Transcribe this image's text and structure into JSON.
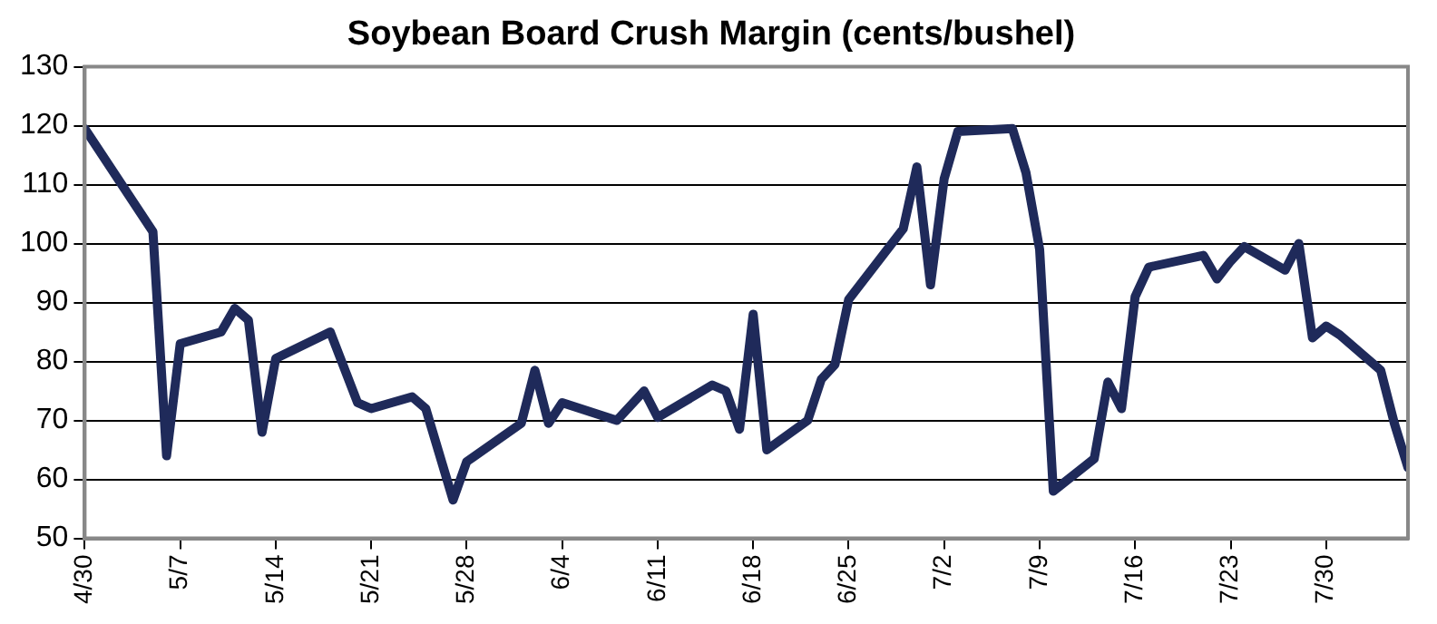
{
  "chart_data": {
    "type": "line",
    "title": "Soybean Board Crush Margin (cents/bushel)",
    "x": [
      "--04-30",
      "--05-05",
      "--05-06",
      "--05-07",
      "--05-10",
      "--05-11",
      "--05-12",
      "--05-13",
      "--05-14",
      "--05-18",
      "--05-20",
      "--05-21",
      "--05-24",
      "--05-25",
      "--05-27",
      "--05-28",
      "--06-01",
      "--06-02",
      "--06-03",
      "--06-04",
      "--06-08",
      "--06-10",
      "--06-11",
      "--06-15",
      "--06-16",
      "--06-17",
      "--06-18",
      "--06-19",
      "--06-22",
      "--06-23",
      "--06-24",
      "--06-25",
      "--06-29",
      "--06-30",
      "--07-01",
      "--07-02",
      "--07-03",
      "--07-07",
      "--07-08",
      "--07-09",
      "--07-10",
      "--07-13",
      "--07-14",
      "--07-15",
      "--07-16",
      "--07-17",
      "--07-21",
      "--07-22",
      "--07-23",
      "--07-24",
      "--07-27",
      "--07-28",
      "--07-29",
      "--07-30",
      "--07-31",
      "--08-03",
      "--08-04",
      "--08-05"
    ],
    "series": [
      {
        "color": "#1f2a5a",
        "values": [
          119.5,
          102,
          64,
          83,
          85,
          89,
          87,
          68,
          80.5,
          85,
          73,
          72,
          74,
          72,
          56.5,
          63,
          69.5,
          78.5,
          69.5,
          73,
          70,
          75,
          70.5,
          76,
          75,
          68.5,
          88,
          65,
          70,
          77,
          79.5,
          90.5,
          102.5,
          113,
          93,
          111,
          119,
          119.5,
          112,
          99,
          58,
          63.5,
          76.5,
          72,
          91,
          96,
          98,
          94,
          97,
          99.5,
          95.5,
          100,
          84,
          86,
          84.5,
          78.5,
          69.5,
          62
        ]
      }
    ],
    "xlim": [
      "--04-30",
      "--08-05"
    ],
    "xticks": [
      {
        "value": "--04-30",
        "label": "4/30"
      },
      {
        "value": "--05-07",
        "label": "5/7"
      },
      {
        "value": "--05-14",
        "label": "5/14"
      },
      {
        "value": "--05-21",
        "label": "5/21"
      },
      {
        "value": "--05-28",
        "label": "5/28"
      },
      {
        "value": "--06-04",
        "label": "6/4"
      },
      {
        "value": "--06-11",
        "label": "6/11"
      },
      {
        "value": "--06-18",
        "label": "6/18"
      },
      {
        "value": "--06-25",
        "label": "6/25"
      },
      {
        "value": "--07-02",
        "label": "7/2"
      },
      {
        "value": "--07-09",
        "label": "7/9"
      },
      {
        "value": "--07-16",
        "label": "7/16"
      },
      {
        "value": "--07-23",
        "label": "7/23"
      },
      {
        "value": "--07-30",
        "label": "7/30"
      }
    ],
    "ylim": [
      50,
      130
    ],
    "yticks": [
      50,
      60,
      70,
      80,
      90,
      100,
      110,
      120,
      130
    ],
    "grid": "y",
    "legend": false,
    "marker": "none",
    "line_style": "solid"
  }
}
